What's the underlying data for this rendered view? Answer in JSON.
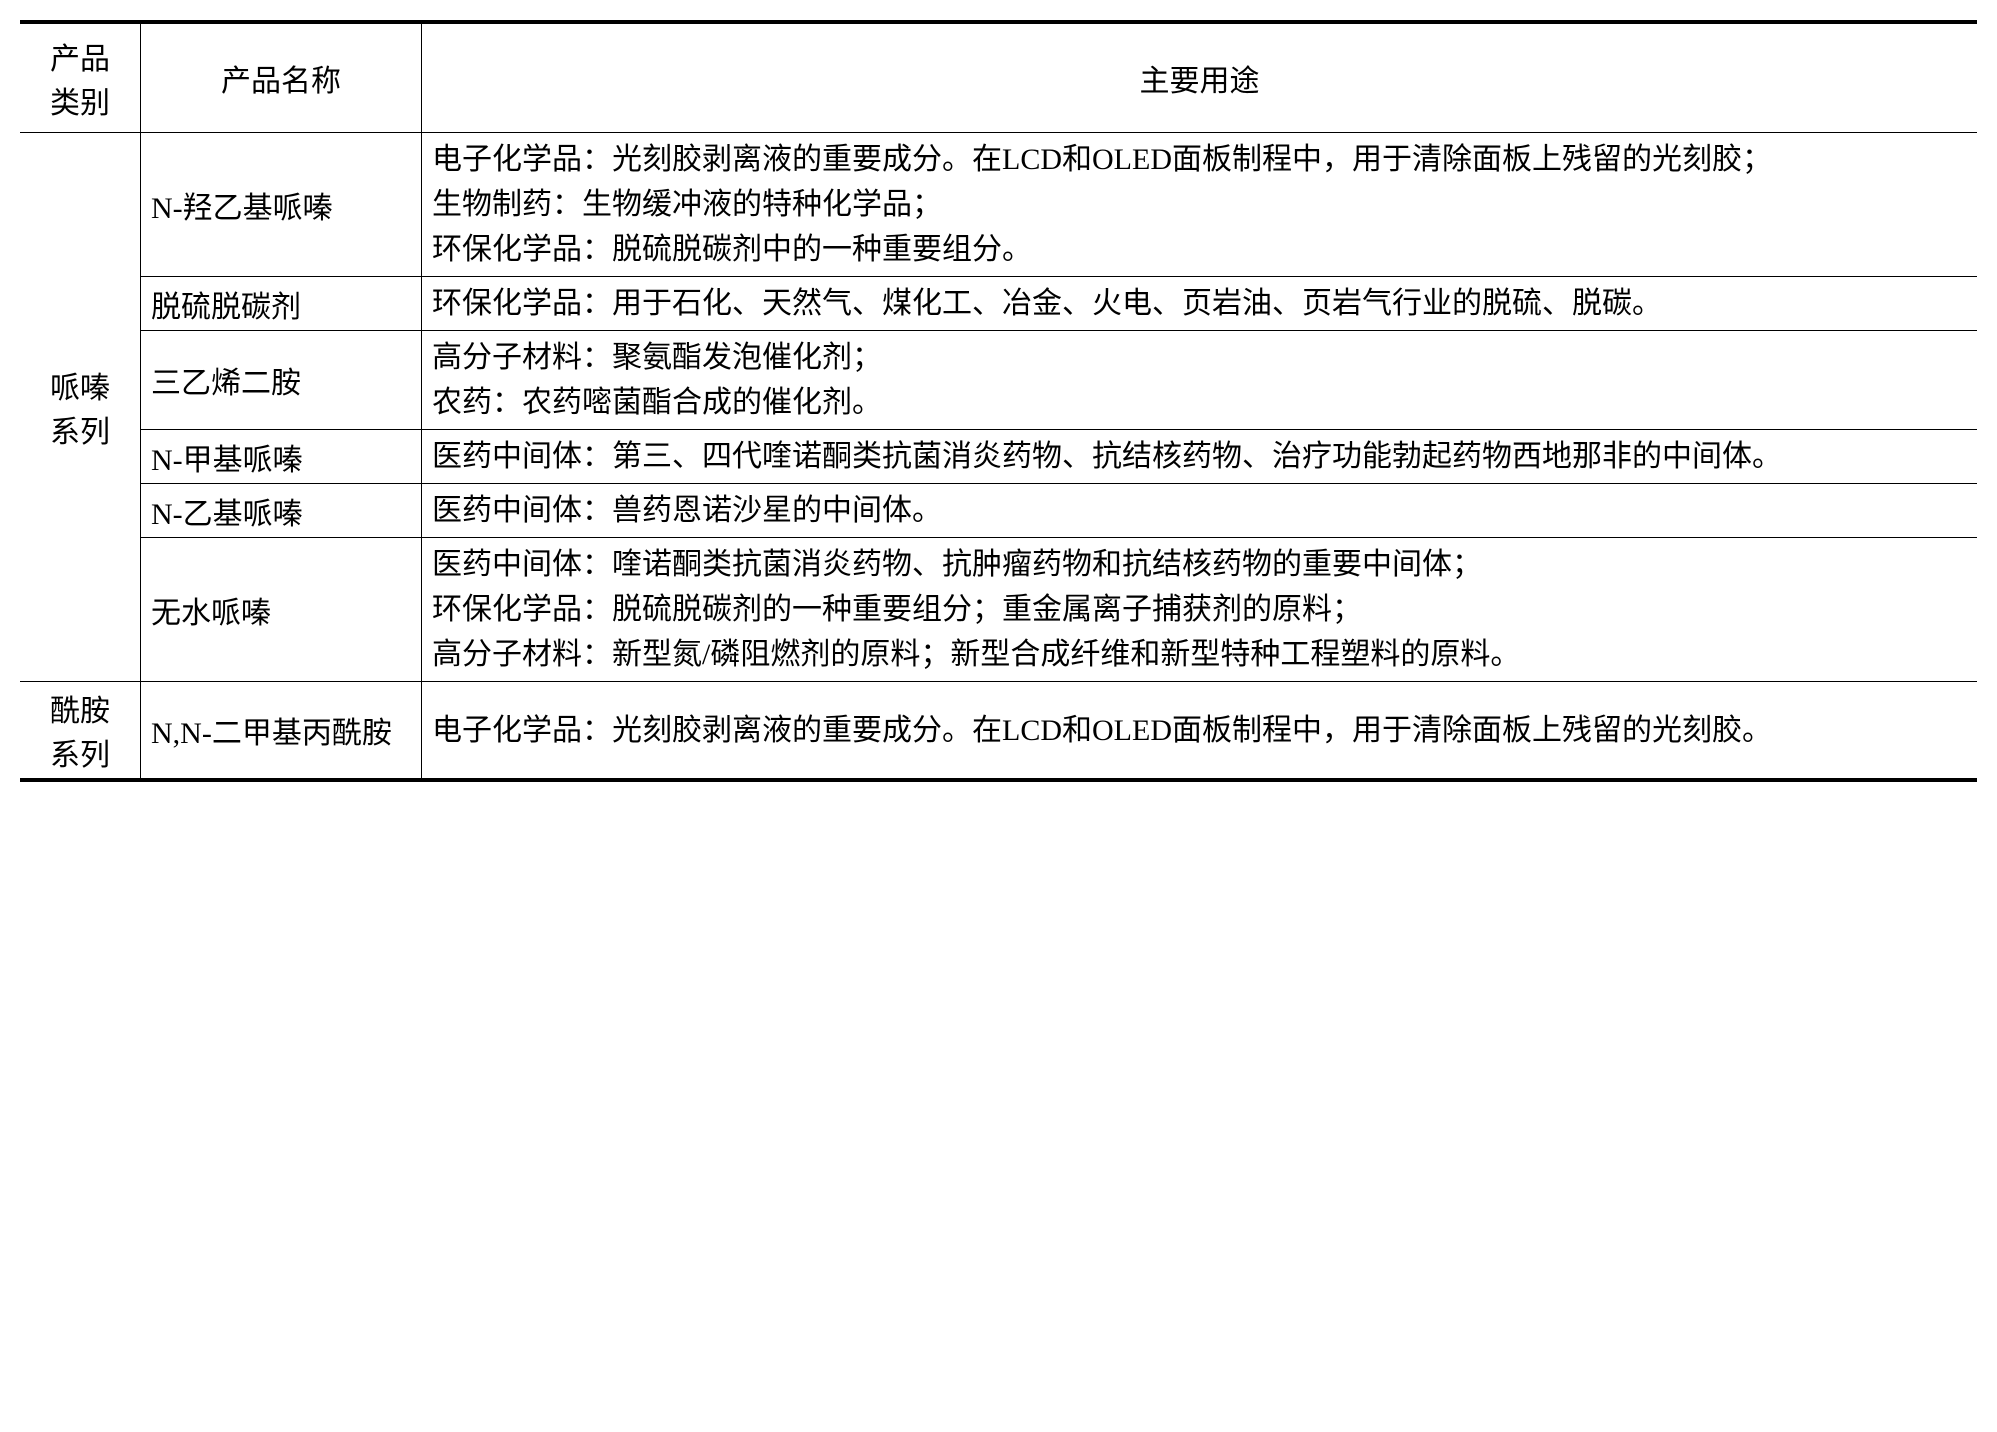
{
  "table": {
    "headers": {
      "category": "产品\n类别",
      "name": "产品名称",
      "usage": "主要用途"
    },
    "groups": [
      {
        "category": "哌嗪\n系列",
        "rows": [
          {
            "name": "N-羟乙基哌嗪",
            "usage": "电子化学品：光刻胶剥离液的重要成分。在LCD和OLED面板制程中，用于清除面板上残留的光刻胶；\n生物制药：生物缓冲液的特种化学品；\n环保化学品：脱硫脱碳剂中的一种重要组分。"
          },
          {
            "name": "脱硫脱碳剂",
            "usage": "环保化学品：用于石化、天然气、煤化工、冶金、火电、页岩油、页岩气行业的脱硫、脱碳。"
          },
          {
            "name": "三乙烯二胺",
            "usage": "高分子材料：聚氨酯发泡催化剂；\n农药：农药嘧菌酯合成的催化剂。"
          },
          {
            "name": "N-甲基哌嗪",
            "usage": "医药中间体：第三、四代喹诺酮类抗菌消炎药物、抗结核药物、治疗功能勃起药物西地那非的中间体。"
          },
          {
            "name": "N-乙基哌嗪",
            "usage": "医药中间体：兽药恩诺沙星的中间体。"
          },
          {
            "name": "无水哌嗪",
            "usage": "医药中间体：喹诺酮类抗菌消炎药物、抗肿瘤药物和抗结核药物的重要中间体；\n环保化学品：脱硫脱碳剂的一种重要组分；重金属离子捕获剂的原料；\n高分子材料：新型氮/磷阻燃剂的原料；新型合成纤维和新型特种工程塑料的原料。"
          }
        ]
      },
      {
        "category": "酰胺\n系列",
        "rows": [
          {
            "name": "N,N-二甲基丙酰胺",
            "usage": "电子化学品：光刻胶剥离液的重要成分。在LCD和OLED面板制程中，用于清除面板上残留的光刻胶。"
          }
        ]
      }
    ],
    "styling": {
      "font_size": 30,
      "text_color": "#000000",
      "background_color": "#ffffff",
      "border_thick": 4,
      "border_thin": 1.5,
      "col_category_width": 100,
      "col_name_width": 260,
      "line_height": 1.5
    }
  }
}
